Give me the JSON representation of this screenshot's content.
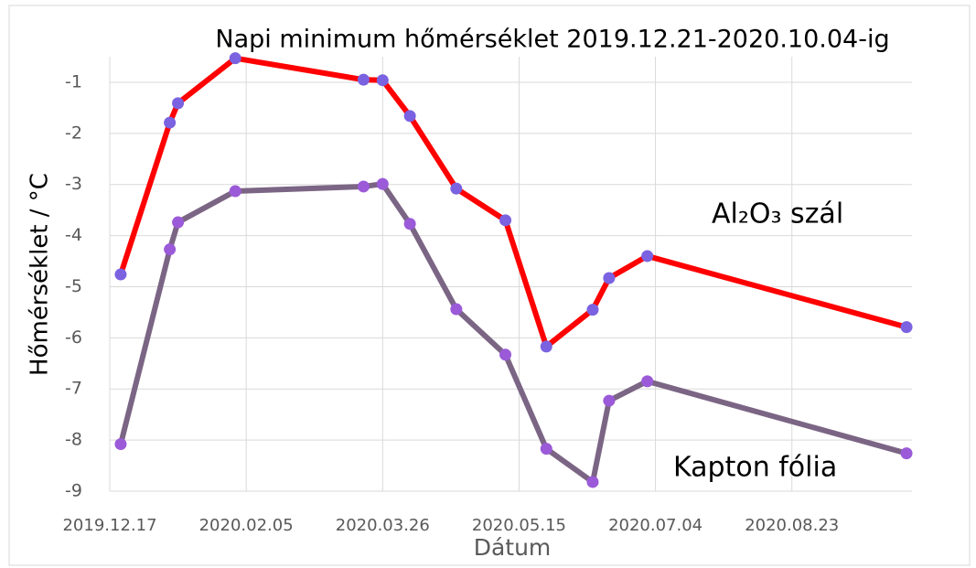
{
  "chart_data": {
    "type": "line",
    "title": "Napi minimum hőmérséklet 2019.12.21-2020.10.04-ig",
    "x_label": "Dátum",
    "y_label": "Hőmérséklet / °C",
    "x": [
      "2019.12.21",
      "2020.01.08",
      "2020.01.11",
      "2020.02.01",
      "2020.03.19",
      "2020.03.26",
      "2020.04.05",
      "2020.04.22",
      "2020.05.10",
      "2020.05.25",
      "2020.06.11",
      "2020.06.17",
      "2020.07.01",
      "2020.10.04"
    ],
    "series": [
      {
        "name": "Al₂O₃ szál",
        "color": "#ff0000",
        "marker_color": "#7b62e0",
        "values": [
          -4.76,
          -1.79,
          -1.41,
          -0.53,
          -0.95,
          -0.96,
          -1.66,
          -3.08,
          -3.7,
          -6.17,
          -5.45,
          -4.83,
          -4.4,
          -5.79
        ]
      },
      {
        "name": "Kapton fólia",
        "color": "#7b6584",
        "marker_color": "#9b5ad8",
        "values": [
          -8.08,
          -4.27,
          -3.74,
          -3.13,
          -3.04,
          -2.99,
          -3.77,
          -5.44,
          -6.33,
          -8.17,
          -8.82,
          -7.23,
          -6.85,
          -8.26
        ]
      }
    ],
    "xlim": [
      "2019.12.17",
      "2020.10.06"
    ],
    "xticks": [
      "2019.12.17",
      "2020.02.05",
      "2020.03.26",
      "2020.05.15",
      "2020.07.04",
      "2020.08.23"
    ],
    "ylim": [
      -9,
      -0.5
    ],
    "yticks": [
      -9,
      -8,
      -7,
      -6,
      -5,
      -4,
      -3,
      -2,
      -1
    ],
    "grid": true
  }
}
